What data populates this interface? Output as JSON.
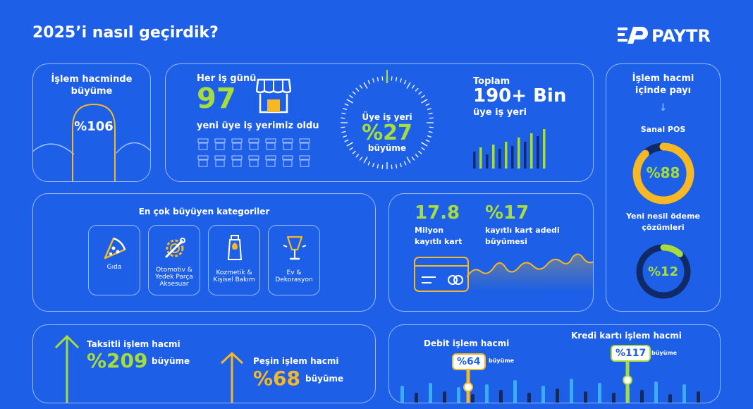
{
  "header": {
    "title": "2025’i nasıl geçirdik?",
    "brand": "PAYTR"
  },
  "volume_growth": {
    "label": "İşlem hacminde büyüme",
    "value": "%106"
  },
  "merchants_daily": {
    "prefix": "Her iş günü",
    "number": "97",
    "suffix": "yeni üye iş yerimiz oldu"
  },
  "merchant_growth": {
    "label_top": "Üye iş yeri",
    "value": "%27",
    "label_bottom": "büyüme"
  },
  "merchants_total": {
    "prefix": "Toplam",
    "number": "190+ Bin",
    "suffix": "üye iş yeri"
  },
  "share": {
    "title": "İşlem hacmi içinde payı",
    "pos_label": "Sanal POS",
    "pos_value": "%88",
    "pos_fraction": 0.88,
    "new_label": "Yeni nesil ödeme çözümleri",
    "new_value": "%12",
    "new_fraction": 0.12
  },
  "categories": {
    "title": "En çok büyüyen kategoriler",
    "items": [
      {
        "label": "Gıda",
        "icon": "pizza-icon"
      },
      {
        "label": "Otomotiv & Yedek Parça Aksesuar",
        "icon": "gear-wrench-icon"
      },
      {
        "label": "Kozmetik & Kişisel Bakım",
        "icon": "cosmetic-tube-icon"
      },
      {
        "label": "Ev & Dekorasyon",
        "icon": "lamp-icon"
      }
    ]
  },
  "cards": {
    "count": "17.8",
    "count_label": "Milyon kayıtlı kart",
    "growth": "%17",
    "growth_label": "kayıtlı kart adedi büyümesi"
  },
  "installments": {
    "taksit_label": "Taksitli işlem hacmi",
    "taksit_value": "%209",
    "taksit_suffix": "büyüme",
    "pesin_label": "Peşin işlem hacmi",
    "pesin_value": "%68",
    "pesin_suffix": "büyüme"
  },
  "debit_credit": {
    "debit_label": "Debit işlem hacmi",
    "debit_value": "%64",
    "debit_suffix": "büyüme",
    "credit_label": "Kredi kartı işlem hacmi",
    "credit_value": "%117",
    "credit_suffix": "büyüme"
  },
  "colors": {
    "background": "#1d5fe6",
    "lime": "#a6dd3c",
    "yellow": "#f6b925",
    "navy": "#0f2a66"
  }
}
